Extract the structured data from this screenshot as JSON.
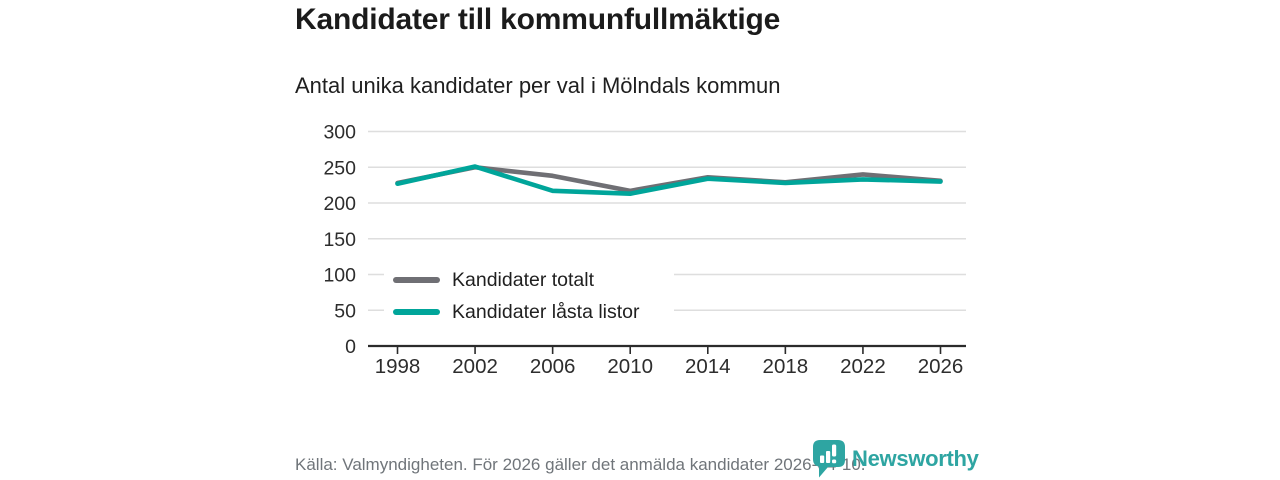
{
  "title": "Kandidater till kommunfullmäktige",
  "subtitle": "Antal unika kandidater per val i Mölndals kommun",
  "footer": {
    "source": "Källa: Valmyndigheten. För 2026 gäller det anmälda kandidater 2026-04-10.",
    "brand": "Newsworthy"
  },
  "colors": {
    "series_total": "#6f6f74",
    "series_locked": "#00a59a",
    "grid": "#dedede",
    "axis": "#2b2b2b",
    "tick_label": "#2d2d2d",
    "brand_teal": "#2ea5a2",
    "muted_text": "#70757a"
  },
  "chart_data": {
    "type": "line",
    "x": [
      "1998",
      "2002",
      "2006",
      "2010",
      "2014",
      "2018",
      "2022",
      "2026"
    ],
    "series": [
      {
        "name": "Kandidater totalt",
        "color": "#6f6f74",
        "values": [
          228,
          250,
          238,
          217,
          236,
          229,
          240,
          231
        ]
      },
      {
        "name": "Kandidater låsta listor",
        "color": "#00a59a",
        "values": [
          227,
          251,
          217,
          213,
          234,
          228,
          233,
          230
        ]
      }
    ],
    "ylim": [
      0,
      300
    ],
    "yticks": [
      0,
      50,
      100,
      150,
      200,
      250,
      300
    ],
    "grid": "horizontal",
    "legend_position": "inside-left"
  }
}
